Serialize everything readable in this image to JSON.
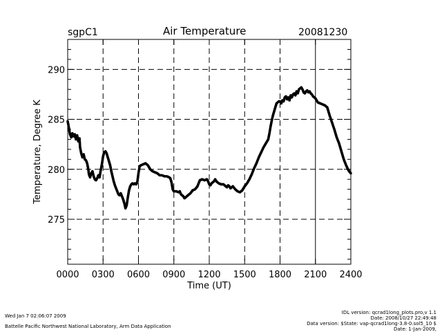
{
  "header": {
    "site": "sgpC1",
    "title": "Air Temperature",
    "date": "20081230"
  },
  "footer": {
    "left_line1": "Wed Jan  7 02:06:07 2009",
    "left_line2": "Battelle Pacific Northwest National Laboratory, Arm Data Application",
    "right_line1": "IDL version: qcrad1long_plots.pro,v 1.1",
    "right_line2": "Date: 2008/10/27 22:49:48",
    "right_line3": "Data version: $State: vap-qcrad1long-3.8-0.sol5_10 $",
    "right_line4": "Date: 1-Jan-2009,"
  },
  "chart_data": {
    "type": "scatter",
    "title": "Air Temperature",
    "xlabel": "Time (UT)",
    "ylabel": "Temperature, Degree K",
    "xlim": [
      0,
      24
    ],
    "ylim": [
      270.5,
      293
    ],
    "x_ticks": [
      0,
      3,
      6,
      9,
      12,
      15,
      18,
      21,
      24
    ],
    "x_tick_labels": [
      "0000",
      "0300",
      "0600",
      "0900",
      "1200",
      "1500",
      "1800",
      "2100",
      "2400"
    ],
    "y_ticks": [
      275,
      280,
      285,
      290
    ],
    "y_tick_labels": [
      "275",
      "280",
      "285",
      "290"
    ],
    "grid": true,
    "series": [
      {
        "name": "Air Temperature",
        "points": [
          [
            0.0,
            284.8
          ],
          [
            0.05,
            284.5
          ],
          [
            0.12,
            284.0
          ],
          [
            0.2,
            283.5
          ],
          [
            0.3,
            283.2
          ],
          [
            0.4,
            283.6
          ],
          [
            0.5,
            283.3
          ],
          [
            0.6,
            283.5
          ],
          [
            0.7,
            283.0
          ],
          [
            0.8,
            283.4
          ],
          [
            0.9,
            282.8
          ],
          [
            1.0,
            283.1
          ],
          [
            1.05,
            282.2
          ],
          [
            1.15,
            281.6
          ],
          [
            1.25,
            281.2
          ],
          [
            1.35,
            281.5
          ],
          [
            1.45,
            281.0
          ],
          [
            1.55,
            280.9
          ],
          [
            1.65,
            280.6
          ],
          [
            1.75,
            280.0
          ],
          [
            1.8,
            279.5
          ],
          [
            1.9,
            279.2
          ],
          [
            2.0,
            279.6
          ],
          [
            2.1,
            279.8
          ],
          [
            2.2,
            279.3
          ],
          [
            2.3,
            279.0
          ],
          [
            2.4,
            278.9
          ],
          [
            2.5,
            279.1
          ],
          [
            2.6,
            279.4
          ],
          [
            2.7,
            279.2
          ],
          [
            2.8,
            279.9
          ],
          [
            2.9,
            280.5
          ],
          [
            3.0,
            281.3
          ],
          [
            3.1,
            281.7
          ],
          [
            3.2,
            281.8
          ],
          [
            3.3,
            281.6
          ],
          [
            3.4,
            281.2
          ],
          [
            3.5,
            280.8
          ],
          [
            3.6,
            280.4
          ],
          [
            3.7,
            279.8
          ],
          [
            3.8,
            279.3
          ],
          [
            3.9,
            278.8
          ],
          [
            4.0,
            278.4
          ],
          [
            4.1,
            278.1
          ],
          [
            4.2,
            277.8
          ],
          [
            4.3,
            277.5
          ],
          [
            4.4,
            277.4
          ],
          [
            4.5,
            277.6
          ],
          [
            4.6,
            277.3
          ],
          [
            4.7,
            277.0
          ],
          [
            4.8,
            276.6
          ],
          [
            4.9,
            276.1
          ],
          [
            5.0,
            276.4
          ],
          [
            5.1,
            277.2
          ],
          [
            5.2,
            277.9
          ],
          [
            5.3,
            278.3
          ],
          [
            5.4,
            278.5
          ],
          [
            5.5,
            278.6
          ],
          [
            5.6,
            278.5
          ],
          [
            5.7,
            278.6
          ],
          [
            5.8,
            278.5
          ],
          [
            5.9,
            278.7
          ],
          [
            6.0,
            279.6
          ],
          [
            6.1,
            280.3
          ],
          [
            6.2,
            280.4
          ],
          [
            6.4,
            280.5
          ],
          [
            6.6,
            280.6
          ],
          [
            6.8,
            280.4
          ],
          [
            7.0,
            280.0
          ],
          [
            7.2,
            279.8
          ],
          [
            7.4,
            279.7
          ],
          [
            7.6,
            279.6
          ],
          [
            7.8,
            279.4
          ],
          [
            8.0,
            279.4
          ],
          [
            8.2,
            279.3
          ],
          [
            8.4,
            279.3
          ],
          [
            8.6,
            279.2
          ],
          [
            8.7,
            279.1
          ],
          [
            8.8,
            278.7
          ],
          [
            8.9,
            278.0
          ],
          [
            9.0,
            277.8
          ],
          [
            9.2,
            277.8
          ],
          [
            9.4,
            277.7
          ],
          [
            9.5,
            277.8
          ],
          [
            9.6,
            277.5
          ],
          [
            9.8,
            277.3
          ],
          [
            9.9,
            277.1
          ],
          [
            10.0,
            277.2
          ],
          [
            10.2,
            277.4
          ],
          [
            10.4,
            277.6
          ],
          [
            10.6,
            277.9
          ],
          [
            10.8,
            278.0
          ],
          [
            11.0,
            278.3
          ],
          [
            11.1,
            278.6
          ],
          [
            11.2,
            278.9
          ],
          [
            11.4,
            279.0
          ],
          [
            11.6,
            278.9
          ],
          [
            11.8,
            279.0
          ],
          [
            11.9,
            278.8
          ],
          [
            12.0,
            278.5
          ],
          [
            12.1,
            278.4
          ],
          [
            12.2,
            278.6
          ],
          [
            12.4,
            278.8
          ],
          [
            12.5,
            279.0
          ],
          [
            12.6,
            278.8
          ],
          [
            12.8,
            278.6
          ],
          [
            13.0,
            278.5
          ],
          [
            13.2,
            278.5
          ],
          [
            13.4,
            278.3
          ],
          [
            13.5,
            278.2
          ],
          [
            13.6,
            278.4
          ],
          [
            13.7,
            278.3
          ],
          [
            13.8,
            278.1
          ],
          [
            14.0,
            278.3
          ],
          [
            14.2,
            278.0
          ],
          [
            14.4,
            277.8
          ],
          [
            14.6,
            277.7
          ],
          [
            14.8,
            277.9
          ],
          [
            15.0,
            278.3
          ],
          [
            15.2,
            278.6
          ],
          [
            15.4,
            279.0
          ],
          [
            15.6,
            279.5
          ],
          [
            15.8,
            280.1
          ],
          [
            16.0,
            280.6
          ],
          [
            16.2,
            281.2
          ],
          [
            16.4,
            281.7
          ],
          [
            16.6,
            282.2
          ],
          [
            16.8,
            282.6
          ],
          [
            17.0,
            283.0
          ],
          [
            17.1,
            283.6
          ],
          [
            17.2,
            284.3
          ],
          [
            17.3,
            284.9
          ],
          [
            17.4,
            285.4
          ],
          [
            17.5,
            285.8
          ],
          [
            17.6,
            286.2
          ],
          [
            17.7,
            286.6
          ],
          [
            17.8,
            286.7
          ],
          [
            17.9,
            286.8
          ],
          [
            18.0,
            286.8
          ],
          [
            18.1,
            286.6
          ],
          [
            18.2,
            286.9
          ],
          [
            18.3,
            286.8
          ],
          [
            18.4,
            287.2
          ],
          [
            18.5,
            287.3
          ],
          [
            18.6,
            287.0
          ],
          [
            18.7,
            287.2
          ],
          [
            18.8,
            286.9
          ],
          [
            18.9,
            287.4
          ],
          [
            19.0,
            287.2
          ],
          [
            19.1,
            287.5
          ],
          [
            19.2,
            287.6
          ],
          [
            19.3,
            287.4
          ],
          [
            19.4,
            287.8
          ],
          [
            19.5,
            287.6
          ],
          [
            19.6,
            288.0
          ],
          [
            19.7,
            288.1
          ],
          [
            19.8,
            288.2
          ],
          [
            19.9,
            288.0
          ],
          [
            20.0,
            287.7
          ],
          [
            20.1,
            287.6
          ],
          [
            20.2,
            287.8
          ],
          [
            20.3,
            287.9
          ],
          [
            20.4,
            287.7
          ],
          [
            20.5,
            287.8
          ],
          [
            20.6,
            287.6
          ],
          [
            20.7,
            287.5
          ],
          [
            20.8,
            287.3
          ],
          [
            20.9,
            287.2
          ],
          [
            21.0,
            287.1
          ],
          [
            21.1,
            286.9
          ],
          [
            21.2,
            286.7
          ],
          [
            21.4,
            286.6
          ],
          [
            21.6,
            286.5
          ],
          [
            21.8,
            286.4
          ],
          [
            22.0,
            286.2
          ],
          [
            22.1,
            285.8
          ],
          [
            22.2,
            285.4
          ],
          [
            22.4,
            284.7
          ],
          [
            22.6,
            284.0
          ],
          [
            22.8,
            283.2
          ],
          [
            23.0,
            282.6
          ],
          [
            23.2,
            281.8
          ],
          [
            23.4,
            281.0
          ],
          [
            23.6,
            280.4
          ],
          [
            23.8,
            279.9
          ],
          [
            24.0,
            279.6
          ]
        ]
      }
    ]
  }
}
